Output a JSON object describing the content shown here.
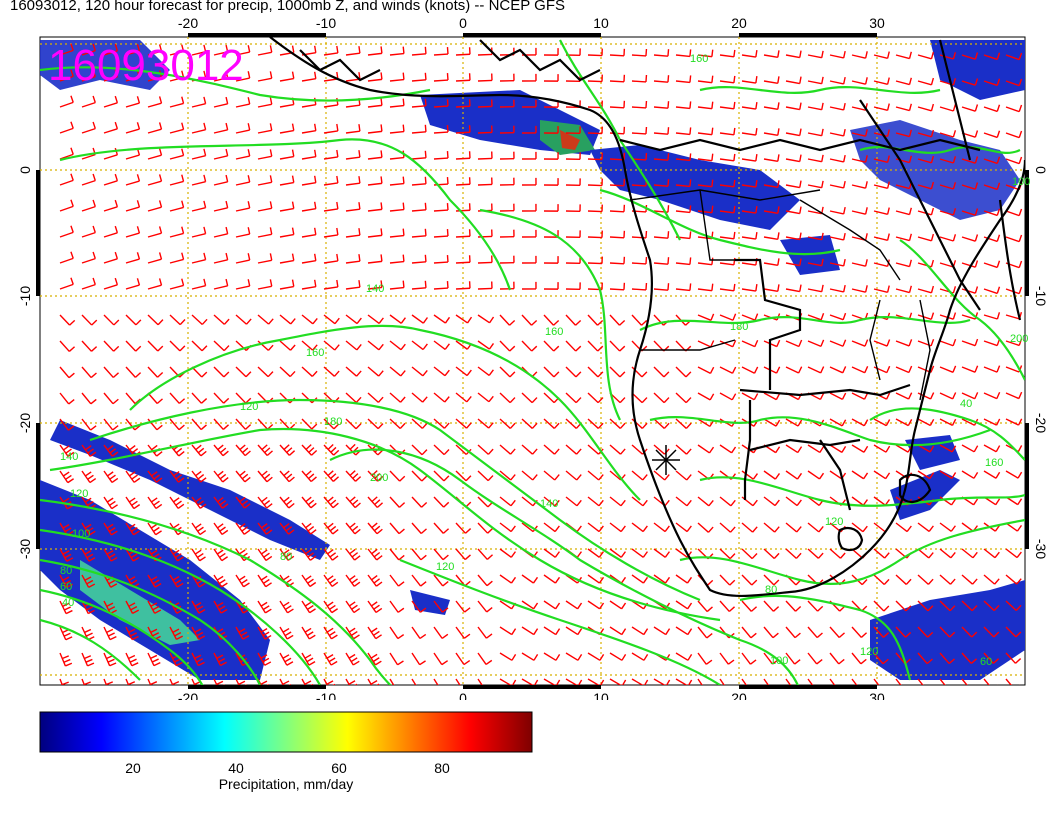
{
  "header": {
    "title": "16093012, 120 hour forecast for precip, 1000mb Z, and winds (knots) -- NCEP GFS"
  },
  "map": {
    "stamp": "16093012",
    "lon_labels": [
      "-20",
      "-10",
      "0",
      "10",
      "20",
      "30"
    ],
    "lat_labels": [
      "0",
      "-10",
      "-20",
      "-30"
    ],
    "contour_labels": [
      "140",
      "160",
      "180",
      "200",
      "160",
      "140",
      "120",
      "100",
      "80",
      "60",
      "40",
      "40",
      "60",
      "80",
      "100",
      "120",
      "140",
      "160",
      "180",
      "200",
      "120",
      "120",
      "100",
      "160",
      "80",
      "120"
    ],
    "colors": {
      "contour": "#22dd22",
      "barb": "#ff0000",
      "coast": "#000000",
      "grid": "#d8b000",
      "stamp": "#ff00ff"
    }
  },
  "colorbar": {
    "ticks": [
      "20",
      "40",
      "60",
      "80"
    ],
    "label": "Precipitation, mm/day",
    "colors": [
      "#00007f",
      "#0000ff",
      "#0080ff",
      "#00ffff",
      "#80ff80",
      "#ffff00",
      "#ff8000",
      "#ff0000",
      "#7f0000"
    ]
  }
}
